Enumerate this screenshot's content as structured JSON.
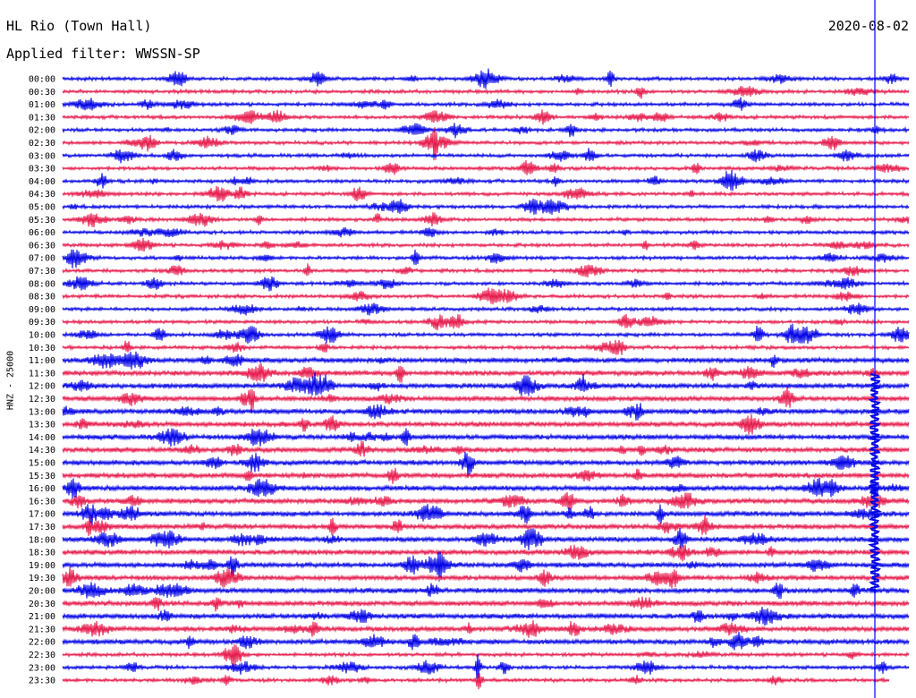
{
  "chart_data": {
    "type": "line",
    "title": "HL Rio (Town Hall)",
    "subtitle": "Applied filter: WWSSN-SP",
    "date": "2020-08-02",
    "ylabel": "HNZ - 25000",
    "row_labels": [
      "00:00",
      "00:30",
      "01:00",
      "01:30",
      "02:00",
      "02:30",
      "03:00",
      "03:30",
      "04:00",
      "04:30",
      "05:00",
      "05:30",
      "06:00",
      "06:30",
      "07:00",
      "07:30",
      "08:00",
      "08:30",
      "09:00",
      "09:30",
      "10:00",
      "10:30",
      "11:00",
      "11:30",
      "12:00",
      "12:30",
      "13:00",
      "13:30",
      "14:00",
      "14:30",
      "15:00",
      "15:30",
      "16:00",
      "16:30",
      "17:00",
      "17:30",
      "18:00",
      "18:30",
      "19:00",
      "19:30",
      "20:00",
      "20:30",
      "21:00",
      "21:30",
      "22:00",
      "22:30",
      "23:00",
      "23:30"
    ],
    "series_colors": [
      "#0000e6",
      "#e6194b"
    ],
    "grid": false,
    "marker_line": {
      "color": "#0000ff"
    }
  }
}
